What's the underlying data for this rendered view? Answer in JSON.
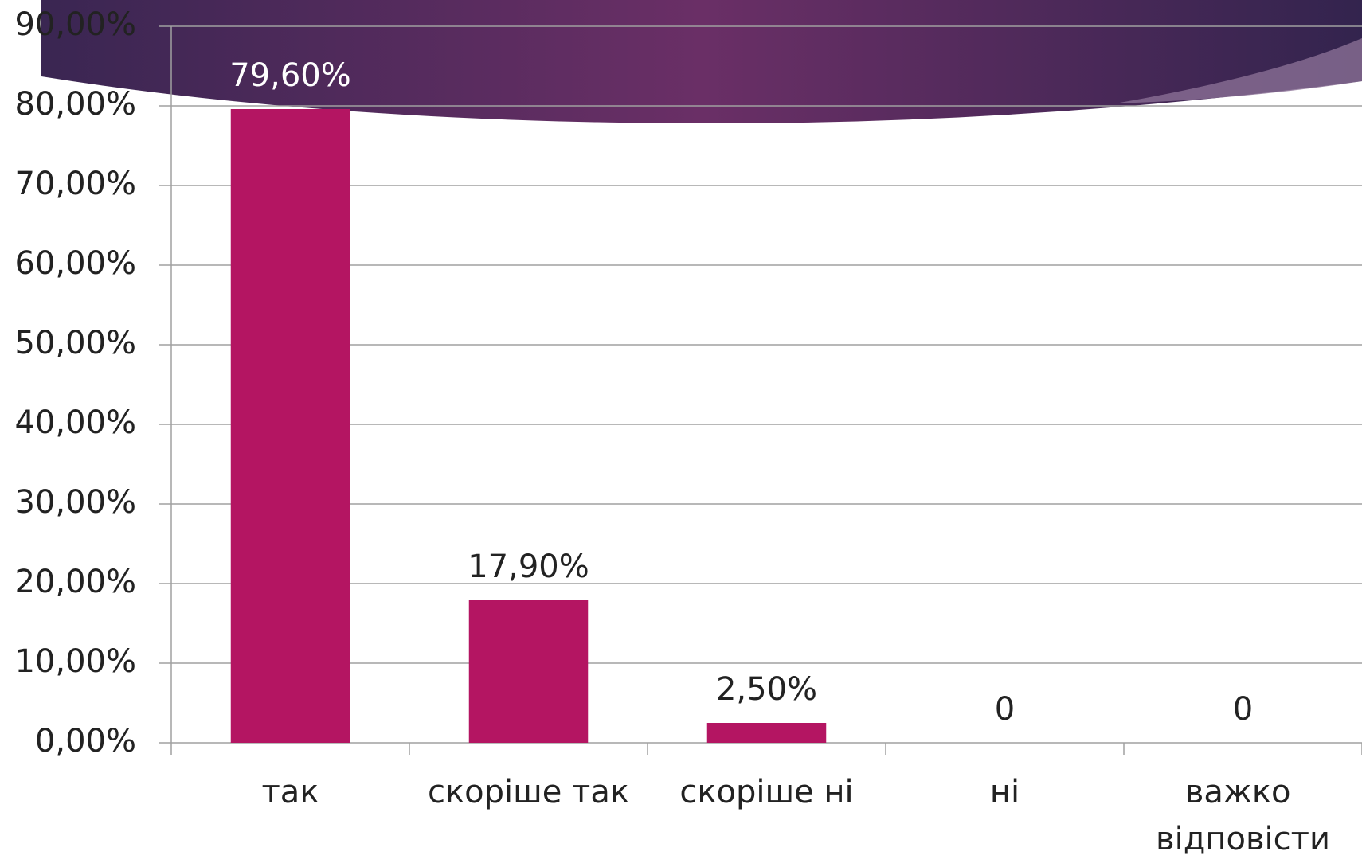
{
  "chart_data": {
    "type": "bar",
    "categories": [
      "так",
      "скоріше так",
      "скоріше ні",
      "ні",
      "важко відповісти"
    ],
    "values": [
      79.6,
      17.9,
      2.5,
      0,
      0
    ],
    "value_labels": [
      "79,60%",
      "17,90%",
      "2,50%",
      "0",
      "0"
    ],
    "color": "#b41562",
    "ylim": [
      0,
      90
    ],
    "yticks": [
      {
        "value": 0,
        "label": "0,00%"
      },
      {
        "value": 10,
        "label": "10,00%"
      },
      {
        "value": 20,
        "label": "20,00%"
      },
      {
        "value": 30,
        "label": "30,00%"
      },
      {
        "value": 40,
        "label": "40,00%"
      },
      {
        "value": 50,
        "label": "50,00%"
      },
      {
        "value": 60,
        "label": "60,00%"
      },
      {
        "value": 70,
        "label": "70,00%"
      },
      {
        "value": 80,
        "label": "80,00%"
      },
      {
        "value": 90,
        "label": "90,00%"
      }
    ],
    "grid": true
  }
}
